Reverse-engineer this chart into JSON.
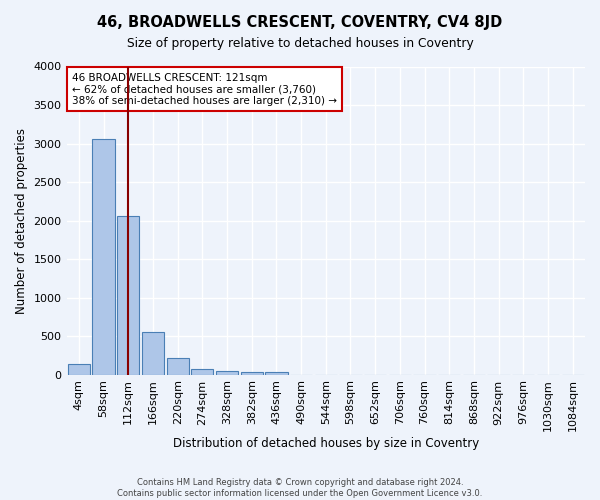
{
  "title": "46, BROADWELLS CRESCENT, COVENTRY, CV4 8JD",
  "subtitle": "Size of property relative to detached houses in Coventry",
  "xlabel": "Distribution of detached houses by size in Coventry",
  "ylabel": "Number of detached properties",
  "footer_line1": "Contains HM Land Registry data © Crown copyright and database right 2024.",
  "footer_line2": "Contains public sector information licensed under the Open Government Licence v3.0.",
  "bin_labels": [
    "4sqm",
    "58sqm",
    "112sqm",
    "166sqm",
    "220sqm",
    "274sqm",
    "328sqm",
    "382sqm",
    "436sqm",
    "490sqm",
    "544sqm",
    "598sqm",
    "652sqm",
    "706sqm",
    "760sqm",
    "814sqm",
    "868sqm",
    "922sqm",
    "976sqm",
    "1030sqm",
    "1084sqm"
  ],
  "bar_heights": [
    140,
    3060,
    2060,
    550,
    220,
    70,
    50,
    35,
    40,
    0,
    0,
    0,
    0,
    0,
    0,
    0,
    0,
    0,
    0,
    0,
    0
  ],
  "bar_color": "#aec6e8",
  "bar_edge_color": "#4a7fb5",
  "background_color": "#eef3fb",
  "grid_color": "#ffffff",
  "vline_position": 2.0,
  "vline_color": "#880000",
  "annotation_text": "46 BROADWELLS CRESCENT: 121sqm\n← 62% of detached houses are smaller (3,760)\n38% of semi-detached houses are larger (2,310) →",
  "annotation_box_facecolor": "#ffffff",
  "annotation_box_edgecolor": "#cc0000",
  "ylim": [
    0,
    4000
  ],
  "yticks": [
    0,
    500,
    1000,
    1500,
    2000,
    2500,
    3000,
    3500,
    4000
  ]
}
